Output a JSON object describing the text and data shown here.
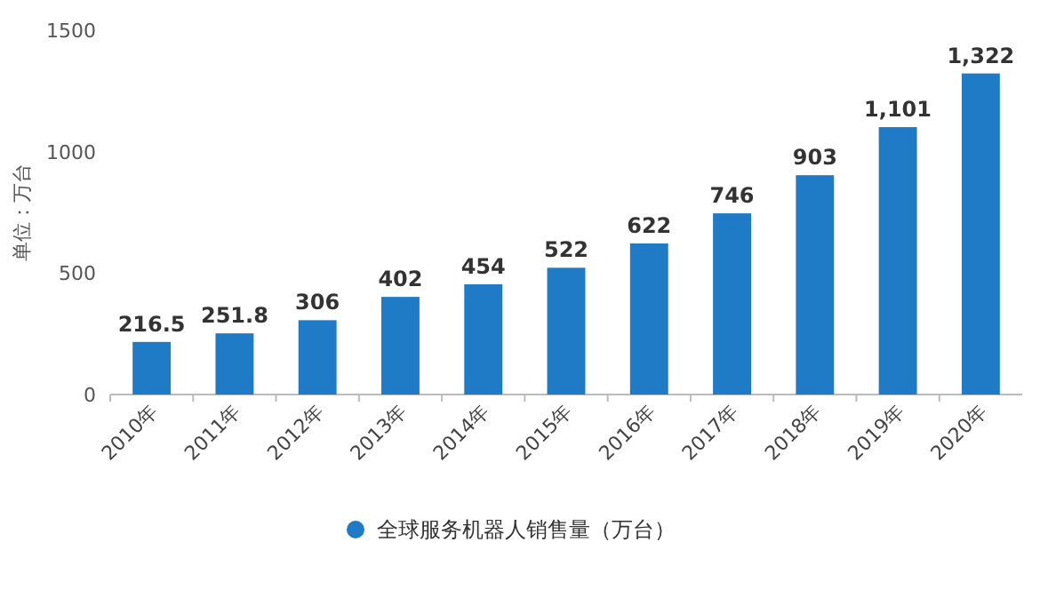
{
  "chart_data": {
    "type": "bar",
    "ylabel": "单位：万台",
    "categories": [
      "2010年",
      "2011年",
      "2012年",
      "2013年",
      "2014年",
      "2015年",
      "2016年",
      "2017年",
      "2018年",
      "2019年",
      "2020年"
    ],
    "series": [
      {
        "name": "全球服务机器人销售量（万台）",
        "color": "#1f7bc6",
        "values": [
          216.5,
          251.8,
          306,
          402,
          454,
          522,
          622,
          746,
          903,
          1101,
          1322
        ],
        "value_labels": [
          "216.5",
          "251.8",
          "306",
          "402",
          "454",
          "522",
          "622",
          "746",
          "903",
          "1,101",
          "1,322"
        ]
      }
    ],
    "ylim": [
      0,
      1500
    ],
    "yticks": [
      0,
      500,
      1000,
      1500
    ],
    "legend": "bottom"
  }
}
